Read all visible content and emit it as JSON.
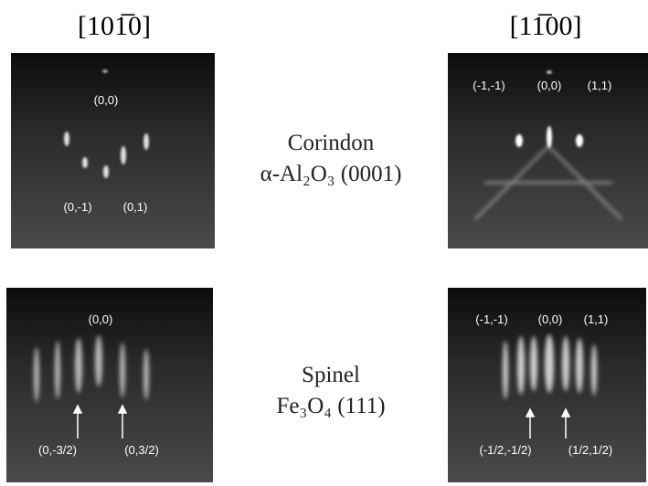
{
  "columns": [
    {
      "direction": "[101̅0]"
    },
    {
      "direction": "[11̅00]"
    }
  ],
  "rows": [
    {
      "name": "Corindon",
      "formula": "α-Al₂O₃ (0001)"
    },
    {
      "name": "Spinel",
      "formula": "Fe₃O₄ (111)"
    }
  ],
  "panels": [
    {
      "labels": [
        "(0,0)",
        "(0,-1)",
        "(0,1)"
      ]
    },
    {
      "labels": [
        "(-1,-1)",
        "(0,0)",
        "(1,1)"
      ]
    },
    {
      "labels": [
        "(0,0)",
        "(0,-3/2)",
        "(0,3/2)"
      ]
    },
    {
      "labels": [
        "(-1,-1)",
        "(0,0)",
        "(1,1)",
        "(-1/2,-1/2)",
        "(1/2,1/2)"
      ]
    }
  ]
}
